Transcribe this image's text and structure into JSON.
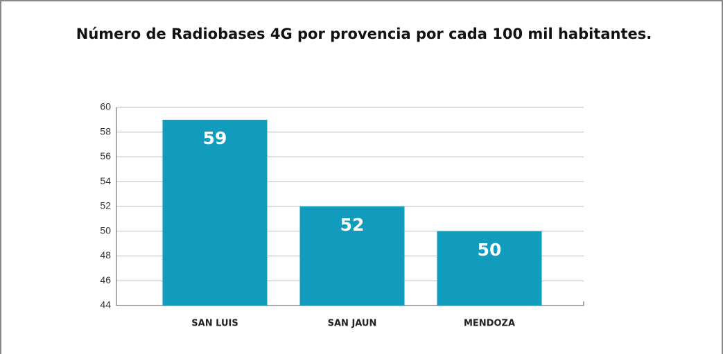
{
  "chart_data": {
    "type": "bar",
    "title": "Número de Radiobases 4G por provencia por cada 100 mil habitantes.",
    "categories": [
      "SAN LUIS",
      "SAN JAUN",
      "MENDOZA"
    ],
    "values": [
      59,
      52,
      50
    ],
    "color": "#119bbd",
    "ylim": [
      44,
      60
    ],
    "yticks": [
      44,
      46,
      48,
      50,
      52,
      54,
      56,
      58,
      60
    ],
    "grid": true
  }
}
